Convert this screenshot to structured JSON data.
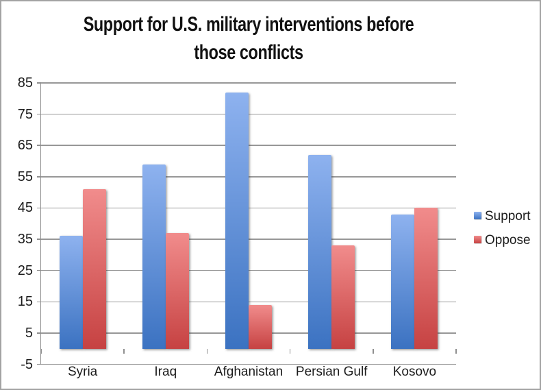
{
  "window": {
    "background": "#ffffff",
    "border_color": "#a3a3a3",
    "text_color": "#1c1c1c",
    "gridline_color": "#979797"
  },
  "chart_data": {
    "type": "bar",
    "title": "Support for U.S. military interventions before those conflicts",
    "categories": [
      "Syria",
      "Iraq",
      "Afghanistan",
      "Persian Gulf",
      "Kosovo"
    ],
    "series": [
      {
        "name": "Support",
        "values": [
          36,
          59,
          82,
          62,
          43
        ],
        "color_top": "#8EB2EF",
        "color_bottom": "#3B72C1"
      },
      {
        "name": "Oppose",
        "values": [
          51,
          37,
          14,
          33,
          45
        ],
        "color_top": "#F18C8C",
        "color_bottom": "#C64242"
      }
    ],
    "ylabel": "",
    "xlabel": "",
    "ylim": [
      -5,
      85
    ],
    "ytick_step": 10,
    "ytick_labels": [
      "-5",
      "5",
      "15",
      "25",
      "35",
      "45",
      "55",
      "65",
      "75",
      "85"
    ],
    "grid": true,
    "legend_position": "right",
    "legend_labels": [
      "Support",
      "Oppose"
    ]
  }
}
